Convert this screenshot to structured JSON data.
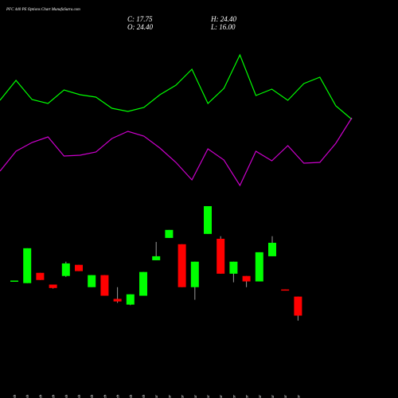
{
  "chart_data": {
    "type": "candlestick",
    "title": "PFC 440  PE Options  Chart MunafaSutra.com",
    "ohlc_labels": [
      "C: 17.75",
      "H: 24.40",
      "O: 24.40",
      "L: 16.00"
    ],
    "categories": [
      "09 Feb",
      "16 Feb",
      "17 Feb",
      "18 Feb",
      "19 Feb",
      "20 Feb",
      "23 Feb",
      "24 Feb",
      "25 Feb",
      "26 Feb",
      "27 Feb",
      "02 Mar",
      "04 Mar",
      "05 Mar",
      "06 Mar",
      "09 Mar",
      "10 Mar",
      "11 Mar",
      "12 Mar",
      "13 Mar",
      "16 Mar",
      "17 Mar",
      "18 Mar"
    ],
    "open": [
      29.9,
      29.1,
      32.7,
      28.6,
      31.6,
      35.5,
      27.7,
      31.9,
      23.6,
      21.6,
      24.7,
      37.1,
      44.9,
      42.7,
      27.7,
      46.3,
      44.6,
      32.4,
      31.6,
      29.7,
      38.5,
      26.9,
      24.4
    ],
    "high": [
      30.0,
      41.3,
      32.7,
      28.6,
      36.6,
      35.5,
      31.9,
      31.9,
      27.7,
      25.2,
      33.0,
      43.5,
      47.7,
      42.7,
      36.6,
      56.0,
      45.5,
      36.6,
      31.6,
      39.9,
      45.5,
      26.9,
      24.4
    ],
    "low": [
      29.8,
      29.1,
      30.2,
      27.2,
      31.3,
      33.3,
      27.7,
      24.7,
      22.2,
      21.4,
      24.7,
      37.1,
      44.9,
      27.7,
      23.3,
      46.3,
      32.4,
      29.4,
      27.7,
      29.7,
      38.5,
      26.6,
      16.0
    ],
    "close": [
      30.0,
      41.3,
      30.2,
      27.4,
      36.0,
      33.3,
      31.9,
      24.7,
      22.7,
      25.2,
      33.0,
      38.5,
      47.7,
      27.7,
      36.6,
      56.0,
      32.4,
      36.6,
      29.7,
      39.9,
      43.2,
      26.6,
      17.75
    ],
    "ylim": [
      14,
      58.5
    ],
    "up_color": "#00ff00",
    "down_color": "#ff0000",
    "lines": [
      {
        "color": "#00ff00",
        "values": [
          124,
          149,
          125,
          120,
          137,
          131,
          128,
          114,
          110,
          115,
          131,
          143,
          163,
          120,
          139,
          181,
          130,
          138,
          124,
          145,
          153,
          117,
          100
        ]
      },
      {
        "color": "#cc00cc",
        "values": [
          35,
          60,
          71,
          78,
          54,
          55,
          59,
          76,
          85,
          79,
          64,
          46,
          24,
          63,
          49,
          17,
          60,
          48,
          67,
          45,
          46,
          70,
          102
        ]
      }
    ],
    "y2lim": [
      0,
      250
    ]
  }
}
